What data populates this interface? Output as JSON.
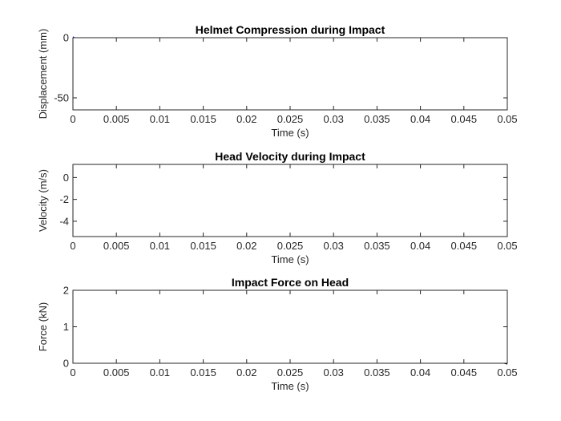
{
  "chart_data": [
    {
      "type": "line",
      "title": "Helmet Compression during Impact",
      "xlabel": "Time (s)",
      "ylabel": "Displacement (mm)",
      "xlim": [
        0,
        0.05
      ],
      "ylim": [
        -60,
        0
      ],
      "xticks": [
        0,
        0.005,
        0.01,
        0.015,
        0.02,
        0.025,
        0.03,
        0.035,
        0.04,
        0.045,
        0.05
      ],
      "xtick_labels": [
        "0",
        "0.005",
        "0.01",
        "0.015",
        "0.02",
        "0.025",
        "0.03",
        "0.035",
        "0.04",
        "0.045",
        "0.05"
      ],
      "yticks": [
        -50,
        0
      ],
      "ytick_labels": [
        "-50",
        "0"
      ],
      "grid": true,
      "series": [
        {
          "color": "#0000ff",
          "x": [
            0,
            0.0025,
            0.005,
            0.0075,
            0.01,
            0.0125,
            0.015,
            0.0175,
            0.02,
            0.0225,
            0.025,
            0.0275,
            0.03,
            0.0325,
            0.035,
            0.0375,
            0.04,
            0.0425,
            0.045,
            0.0475,
            0.05
          ],
          "y": [
            0,
            -12,
            -22.5,
            -31.5,
            -39,
            -45,
            -50,
            -53.5,
            -56.3,
            -58,
            -58.8,
            -59.2,
            -58.8,
            -58,
            -56.7,
            -55.2,
            -53.3,
            -51.4,
            -49.3,
            -47.1,
            -44.8
          ]
        }
      ]
    },
    {
      "type": "line",
      "title": "Head Velocity during Impact",
      "xlabel": "Time (s)",
      "ylabel": "Velocity (m/s)",
      "xlim": [
        0,
        0.05
      ],
      "ylim": [
        -5.4,
        1.2
      ],
      "xticks": [
        0,
        0.005,
        0.01,
        0.015,
        0.02,
        0.025,
        0.03,
        0.035,
        0.04,
        0.045,
        0.05
      ],
      "xtick_labels": [
        "0",
        "0.005",
        "0.01",
        "0.015",
        "0.02",
        "0.025",
        "0.03",
        "0.035",
        "0.04",
        "0.045",
        "0.05"
      ],
      "yticks": [
        -4,
        -2,
        0
      ],
      "ytick_labels": [
        "-4",
        "-2",
        "0"
      ],
      "grid": true,
      "series": [
        {
          "color": "#ff0000",
          "x": [
            0,
            0.0025,
            0.005,
            0.0075,
            0.01,
            0.0125,
            0.015,
            0.0175,
            0.02,
            0.0225,
            0.025,
            0.0275,
            0.03,
            0.0325,
            0.035,
            0.0375,
            0.04,
            0.0425,
            0.045,
            0.0475,
            0.05
          ],
          "y": [
            -5.3,
            -4.55,
            -3.88,
            -3.25,
            -2.68,
            -2.15,
            -1.68,
            -1.26,
            -0.88,
            -0.55,
            -0.25,
            0.0,
            0.22,
            0.4,
            0.55,
            0.68,
            0.79,
            0.87,
            0.94,
            0.99,
            1.02
          ]
        }
      ]
    },
    {
      "type": "line",
      "title": "Impact Force on Head",
      "xlabel": "Time (s)",
      "ylabel": "Force (kN)",
      "xlim": [
        0,
        0.05
      ],
      "ylim": [
        0,
        2
      ],
      "xticks": [
        0,
        0.005,
        0.01,
        0.015,
        0.02,
        0.025,
        0.03,
        0.035,
        0.04,
        0.045,
        0.05
      ],
      "xtick_labels": [
        "0",
        "0.005",
        "0.01",
        "0.015",
        "0.02",
        "0.025",
        "0.03",
        "0.035",
        "0.04",
        "0.045",
        "0.05"
      ],
      "yticks": [
        0,
        1,
        2
      ],
      "ytick_labels": [
        "0",
        "1",
        "2"
      ],
      "grid": true,
      "series": [
        {
          "color": "#000000",
          "x": [
            0,
            0.0005,
            0.001,
            0.0025,
            0.005,
            0.0075,
            0.01,
            0.0125,
            0.015,
            0.0175,
            0.02,
            0.0225,
            0.025,
            0.0275,
            0.03,
            0.0325,
            0.035,
            0.0375,
            0.04,
            0.0425,
            0.045,
            0.0475,
            0.049,
            0.0495,
            0.05
          ],
          "y": [
            1.63,
            1.62,
            1.58,
            1.52,
            1.42,
            1.3,
            1.19,
            1.08,
            0.98,
            0.88,
            0.79,
            0.7,
            0.62,
            0.55,
            0.47,
            0.4,
            0.34,
            0.28,
            0.22,
            0.16,
            0.11,
            0.07,
            0.05,
            0.03,
            0.0
          ]
        }
      ]
    }
  ]
}
